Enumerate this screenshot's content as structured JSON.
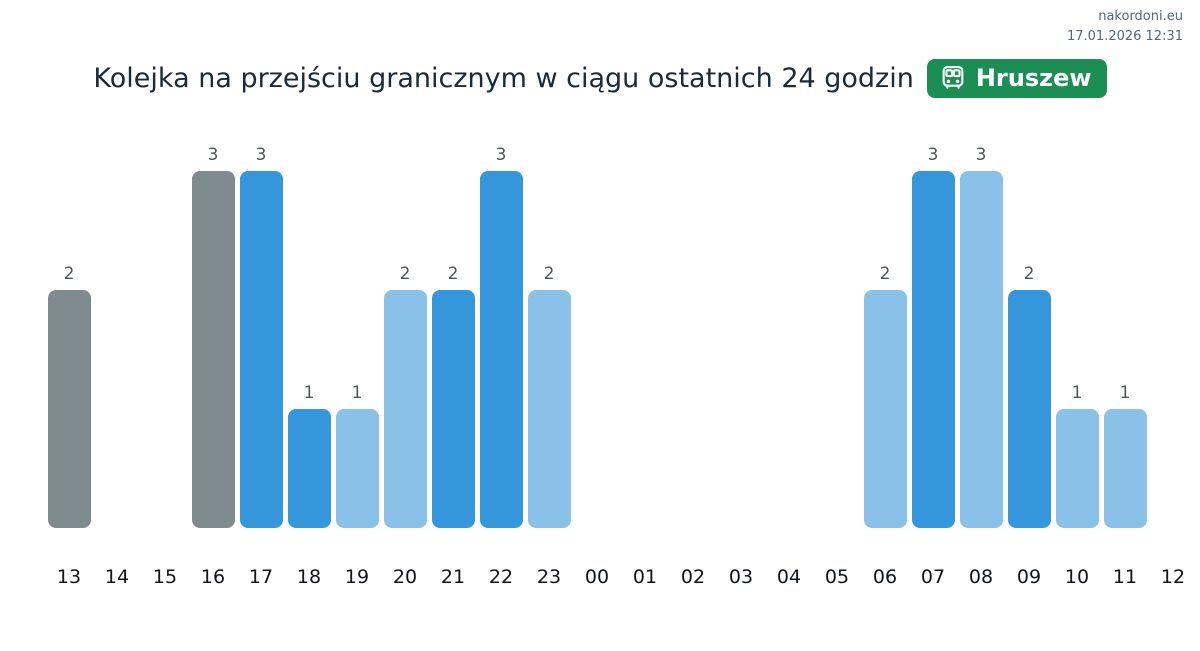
{
  "header": {
    "site": "nakordoni.eu",
    "timestamp": "17.01.2026 12:31"
  },
  "title_bar": {
    "title": "Kolejka na przejściu granicznym w ciągu ostatnich 24 godzin",
    "badge": {
      "label": "Hruszew",
      "icon": "bus-icon"
    }
  },
  "colors": {
    "badge_green": "#1b8e53",
    "bar_blue": "#3597db",
    "bar_light_blue": "#89c1e8",
    "bar_gray": "#7e8c90",
    "title_text": "#1c2936",
    "meta_text": "#5a6673",
    "value_label": "#4d5656",
    "axis_label": "#101418"
  },
  "chart_data": {
    "type": "bar",
    "title": "Kolejka na przejściu granicznym w ciągu ostatnich 24 godzin",
    "categories": [
      "13",
      "14",
      "15",
      "16",
      "17",
      "18",
      "19",
      "20",
      "21",
      "22",
      "23",
      "00",
      "01",
      "02",
      "03",
      "04",
      "05",
      "06",
      "07",
      "08",
      "09",
      "10",
      "11",
      "12"
    ],
    "values": [
      2,
      0,
      0,
      3,
      3,
      1,
      1,
      2,
      2,
      3,
      2,
      0,
      0,
      0,
      0,
      0,
      0,
      2,
      3,
      3,
      2,
      1,
      1,
      0
    ],
    "bar_color_keys": [
      "gray",
      null,
      null,
      "gray",
      "blue",
      "blue",
      "light",
      "light",
      "blue",
      "blue",
      "light",
      null,
      null,
      null,
      null,
      null,
      null,
      "light",
      "blue",
      "light",
      "blue",
      "light",
      "light",
      null
    ],
    "xlabel": "",
    "ylabel": "",
    "ylim": [
      0,
      3
    ],
    "grid": false,
    "legend": "none",
    "value_labels": true
  }
}
